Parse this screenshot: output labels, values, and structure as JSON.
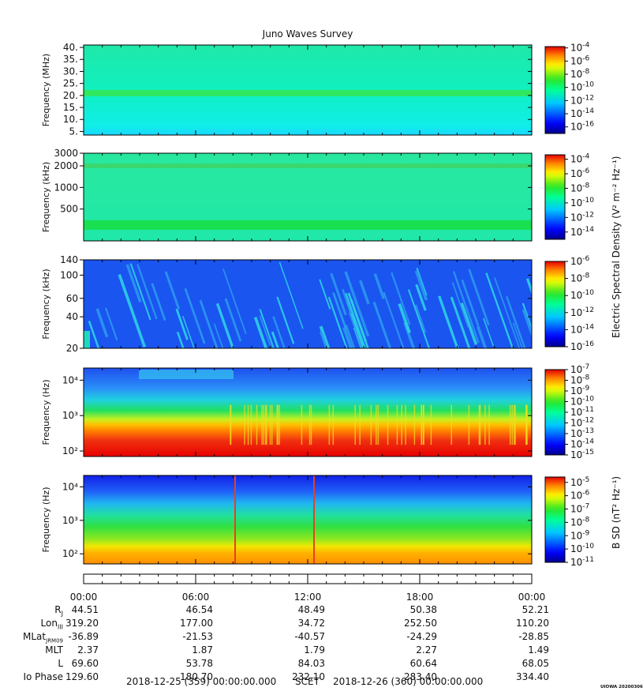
{
  "chart_data": {
    "type": "heatmap",
    "title": "Juno Waves Survey",
    "panels": [
      {
        "ylabel": "Frequency (MHz)",
        "yscale": "linear",
        "ylim": [
          3.5,
          41
        ],
        "yticks": [
          5,
          10,
          15,
          20,
          25,
          30,
          35,
          40
        ],
        "ytick_labels": [
          "5.",
          "10.",
          "15.",
          "20.",
          "25.",
          "30.",
          "35.",
          "40."
        ],
        "colorbar_ticks": [
          "10-4",
          "10-6",
          "10-8",
          "10-10",
          "10-12",
          "10-14",
          "10-16"
        ],
        "colorbar_range_exp": [
          -17,
          -3.8
        ]
      },
      {
        "ylabel": "Frequency (kHz)",
        "yscale": "log",
        "ylim": [
          180,
          3000
        ],
        "yticks": [
          500,
          1000,
          2000,
          3000
        ],
        "ytick_labels": [
          "500",
          "1000",
          "2000",
          "3000"
        ],
        "colorbar_ticks": [
          "10-4",
          "10-6",
          "10-8",
          "10-10",
          "10-12",
          "10-14"
        ],
        "colorbar_range_exp": [
          -15,
          -3.4
        ]
      },
      {
        "ylabel": "Frequency (kHz)",
        "yscale": "log",
        "ylim": [
          20,
          140
        ],
        "yticks": [
          20,
          40,
          60,
          100,
          140
        ],
        "ytick_labels": [
          "20",
          "40",
          "60",
          "100",
          "140"
        ],
        "colorbar_ticks": [
          "10-6",
          "10-8",
          "10-10",
          "10-12",
          "10-14",
          "10-16"
        ],
        "colorbar_range_exp": [
          -16,
          -6
        ]
      },
      {
        "ylabel": "Frequency (Hz)",
        "yscale": "log",
        "ylim": [
          70,
          22000
        ],
        "yticks": [
          100,
          1000,
          10000
        ],
        "ytick_labels": [
          "10²",
          "10³",
          "10⁴"
        ],
        "colorbar_ticks": [
          "10-7",
          "10-8",
          "10-9",
          "10-10",
          "10-11",
          "10-12",
          "10-13",
          "10-14",
          "10-15"
        ],
        "colorbar_range_exp": [
          -15,
          -7
        ]
      },
      {
        "ylabel": "Frequency (Hz)",
        "yscale": "log",
        "ylim": [
          50,
          22000
        ],
        "yticks": [
          100,
          1000,
          10000
        ],
        "ytick_labels": [
          "10²",
          "10³",
          "10⁴"
        ],
        "colorbar_ticks": [
          "10-5",
          "10-6",
          "10-7",
          "10-8",
          "10-9",
          "10-10",
          "10-11"
        ],
        "colorbar_range_exp": [
          -11,
          -4.6
        ]
      }
    ],
    "colorbar_labels": [
      "Electric Spectral Density (V² m⁻² Hz⁻¹)",
      "B SD (nT² Hz⁻¹)"
    ],
    "x_ticks": [
      "00:00",
      "06:00",
      "12:00",
      "18:00",
      "00:00"
    ],
    "ephemeris": [
      {
        "label": "RJ",
        "values": [
          "44.51",
          "46.54",
          "48.49",
          "50.38",
          "52.21"
        ]
      },
      {
        "label": "LonIII",
        "values": [
          "319.20",
          "177.00",
          "34.72",
          "252.50",
          "110.20"
        ]
      },
      {
        "label": "MLatJRM09",
        "values": [
          "-36.89",
          "-21.53",
          "-40.57",
          "-24.29",
          "-28.85"
        ]
      },
      {
        "label": "MLT",
        "values": [
          "2.37",
          "1.87",
          "1.79",
          "2.27",
          "1.49"
        ]
      },
      {
        "label": "L",
        "values": [
          "69.60",
          "53.78",
          "84.03",
          "60.64",
          "68.05"
        ]
      },
      {
        "label": "Io Phase",
        "values": [
          "129.60",
          "180.70",
          "232.10",
          "283.40",
          "334.40"
        ]
      }
    ],
    "footer": {
      "start": "2018-12-25 (359) 00:00:00.000",
      "scet": "SCET",
      "end": "2018-12-26 (360) 00:00:00.000"
    },
    "stamp": "UIOWA 20200306"
  }
}
